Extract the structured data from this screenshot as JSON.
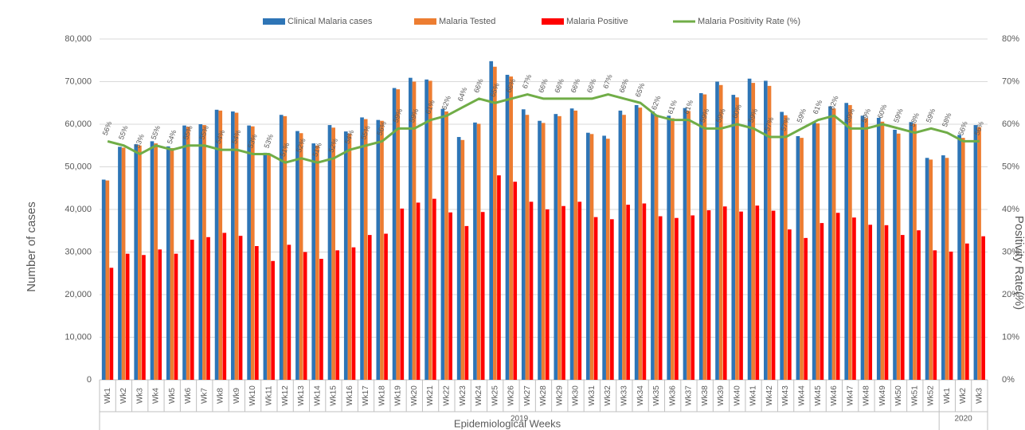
{
  "chart_data": {
    "type": "bar",
    "x_title": "Epidemiological Weeks",
    "y_title": "Number of cases",
    "y2_title": "Positivity Rate(%)",
    "groups": [
      {
        "label": "2019",
        "categories": [
          "Wk1",
          "Wk2",
          "Wk3",
          "Wk4",
          "Wk5",
          "Wk6",
          "Wk7",
          "Wk8",
          "Wk9",
          "Wk10",
          "Wk11",
          "Wk12",
          "Wk13",
          "Wk14",
          "Wk15",
          "Wk16",
          "Wk17",
          "Wk18",
          "Wk19",
          "Wk20",
          "Wk21",
          "Wk22",
          "Wk23",
          "Wk24",
          "Wk25",
          "Wk26",
          "Wk27",
          "Wk28",
          "Wk29",
          "Wk30",
          "Wk31",
          "Wk32",
          "Wk33",
          "Wk34",
          "Wk35",
          "Wk36",
          "Wk37",
          "Wk38",
          "Wk39",
          "Wk40",
          "Wk41",
          "Wk42",
          "Wk43",
          "Wk44",
          "Wk45",
          "Wk46",
          "Wk47",
          "Wk48",
          "Wk49",
          "Wk50",
          "Wk51",
          "Wk52"
        ]
      },
      {
        "label": "2020",
        "categories": [
          "Wk1",
          "Wk2",
          "Wk3"
        ]
      }
    ],
    "series": [
      {
        "name": "Clinical Malaria cases",
        "color": "#2e75b6",
        "values": [
          47000,
          54700,
          55300,
          56000,
          54800,
          59700,
          60000,
          63400,
          63000,
          59700,
          53300,
          62200,
          58400,
          55500,
          59800,
          58300,
          61600,
          61000,
          68500,
          70900,
          70500,
          63600,
          57000,
          60400,
          74800,
          71600,
          63500,
          60800,
          62400,
          63700,
          58000,
          57300,
          63200,
          64500,
          63000,
          62000,
          63800,
          67300,
          70000,
          66900,
          70700,
          70200,
          62900,
          57200,
          60600,
          64200,
          65000,
          62000,
          61500,
          58700,
          60500,
          52100,
          52700,
          57500,
          59800
        ]
      },
      {
        "name": "Malaria Tested",
        "color": "#ed7d31",
        "values": [
          46800,
          54500,
          55000,
          55500,
          54400,
          59400,
          59800,
          63200,
          62700,
          59500,
          52900,
          61900,
          57900,
          55000,
          59200,
          57800,
          61200,
          60800,
          68200,
          70000,
          70200,
          63000,
          56300,
          60100,
          73500,
          71200,
          62200,
          60300,
          61900,
          63200,
          57700,
          56600,
          62200,
          63900,
          62200,
          61400,
          63100,
          67000,
          69200,
          66300,
          69700,
          69000,
          62100,
          56800,
          60200,
          63700,
          64500,
          61400,
          60600,
          57800,
          60100,
          51700,
          52100,
          56800,
          59300
        ]
      },
      {
        "name": "Malaria Positive",
        "color": "#ff0000",
        "values": [
          26300,
          29600,
          29300,
          30600,
          29600,
          32900,
          33500,
          34500,
          33800,
          31400,
          27900,
          31700,
          30000,
          28400,
          30400,
          31100,
          34000,
          34300,
          40200,
          41600,
          42500,
          39300,
          36100,
          39400,
          48000,
          46500,
          41800,
          40000,
          40800,
          41800,
          38200,
          37700,
          41100,
          41400,
          38400,
          38000,
          38600,
          39800,
          40700,
          39500,
          40900,
          39700,
          35300,
          33300,
          36800,
          39200,
          38100,
          36400,
          36300,
          34000,
          35100,
          30400,
          30100,
          32000,
          33700
        ]
      },
      {
        "name": "Malaria Positivity Rate (%)",
        "color": "#70ad47",
        "type": "line",
        "axis": "y2",
        "values": [
          56,
          55,
          53,
          55,
          54,
          55,
          55,
          54,
          54,
          53,
          53,
          51,
          52,
          51,
          52,
          54,
          55,
          56,
          59,
          59,
          61,
          62,
          64,
          66,
          65,
          66,
          67,
          66,
          66,
          66,
          66,
          67,
          66,
          65,
          62,
          61,
          61,
          59,
          59,
          60,
          59,
          57,
          57,
          59,
          61,
          62,
          59,
          59,
          60,
          59,
          58,
          59,
          58,
          56,
          56
        ],
        "value_labels": [
          "56%",
          "55%",
          "53%",
          "55%",
          "54%",
          "55%",
          "55%",
          "54%",
          "54%",
          "53%",
          "53%",
          "51%",
          "52%",
          "51%",
          "52%",
          "54%",
          "55%",
          "56%",
          "59%",
          "59%",
          "61%",
          "62%",
          "64%",
          "66%",
          "65%",
          "66%",
          "67%",
          "66%",
          "66%",
          "66%",
          "66%",
          "67%",
          "66%",
          "65%",
          "62%",
          "61%",
          "61%",
          "59%",
          "59%",
          "60%",
          "59%",
          "57%",
          "57%",
          "59%",
          "61%",
          "62%",
          "59%",
          "59%",
          "60%",
          "59%",
          "58%",
          "59%",
          "58%",
          "56%",
          "56%"
        ]
      }
    ],
    "ylim": [
      0,
      80000
    ],
    "yticks": [
      {
        "value": 0,
        "label": "0"
      },
      {
        "value": 10000,
        "label": "10,000"
      },
      {
        "value": 20000,
        "label": "20,000"
      },
      {
        "value": 30000,
        "label": "30,000"
      },
      {
        "value": 40000,
        "label": "40,000"
      },
      {
        "value": 50000,
        "label": "50,000"
      },
      {
        "value": 60000,
        "label": "60,000"
      },
      {
        "value": 70000,
        "label": "70,000"
      },
      {
        "value": 80000,
        "label": "80,000"
      }
    ],
    "y2lim": [
      0,
      80
    ],
    "y2ticks": [
      {
        "value": 0,
        "label": "0%"
      },
      {
        "value": 10,
        "label": "10%"
      },
      {
        "value": 20,
        "label": "20%"
      },
      {
        "value": 30,
        "label": "30%"
      },
      {
        "value": 40,
        "label": "40%"
      },
      {
        "value": 50,
        "label": "50%"
      },
      {
        "value": 60,
        "label": "60%"
      },
      {
        "value": 70,
        "label": "70%"
      },
      {
        "value": 80,
        "label": "80%"
      }
    ],
    "grid": true,
    "legend": "top"
  }
}
